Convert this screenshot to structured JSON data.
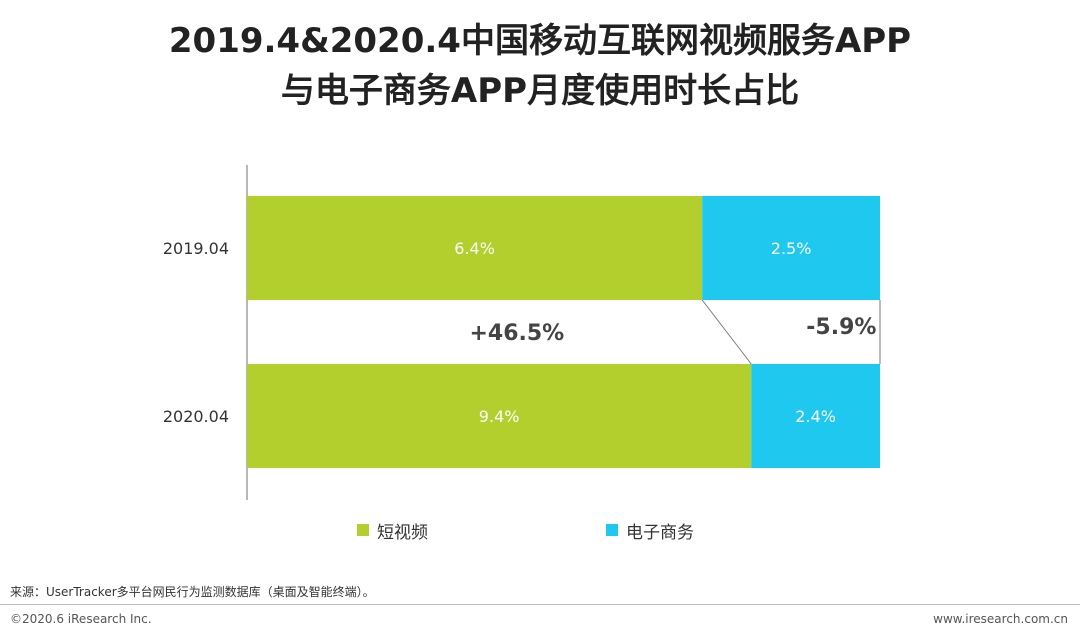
{
  "title_line1": "2019.4&2020.4中国移动互联网视频服务APP",
  "title_line2": "与电子商务APP月度使用时长占比",
  "chart_data": {
    "type": "bar",
    "orientation": "horizontal",
    "stacked": true,
    "categories": [
      "2019.04",
      "2020.04"
    ],
    "series": [
      {
        "name": "短视频",
        "values": [
          6.4,
          9.4
        ],
        "labels": [
          "6.4%",
          "9.4%"
        ],
        "color": "#b2cf2d"
      },
      {
        "name": "电子商务",
        "values": [
          2.5,
          2.4
        ],
        "labels": [
          "2.5%",
          "2.4%"
        ],
        "color": "#1ec8ef"
      }
    ],
    "annotations": [
      {
        "series": "短视频",
        "text": "+46.5%"
      },
      {
        "series": "电子商务",
        "text": "-5.9%"
      }
    ],
    "legend_position": "bottom"
  },
  "source": "来源：UserTracker多平台网民行为监测数据库（桌面及智能终端）。",
  "copyright": "©2020.6 iResearch Inc.",
  "website": "www.iresearch.com.cn"
}
